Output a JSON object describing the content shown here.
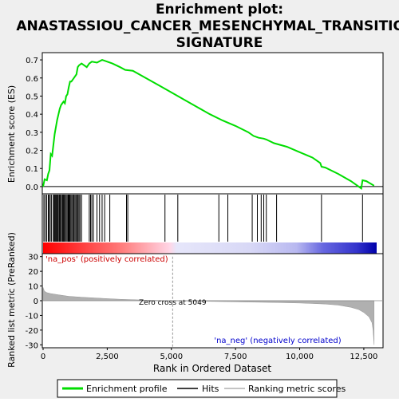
{
  "chart_data": [
    {
      "type": "line",
      "title": "Enrichment plot: ANASTASSIOU_CANCER_MESENCHYMAL_TRANSITION_SIGNATURE",
      "title_lines": [
        "Enrichment plot:",
        "ANASTASSIOU_CANCER_MESENCHYMAL_TRANSITION_",
        "SIGNATURE"
      ],
      "ylabel": "Enrichment score (ES)",
      "xlim": [
        0,
        13000
      ],
      "ylim": [
        -0.04,
        0.74
      ],
      "yticks": [
        0.0,
        0.1,
        0.2,
        0.3,
        0.4,
        0.5,
        0.6,
        0.7
      ],
      "ytick_labels": [
        "0.0",
        "0.1",
        "0.2",
        "0.3",
        "0.4",
        "0.5",
        "0.6",
        "0.7"
      ],
      "series": [
        {
          "name": "Enrichment profile",
          "color": "#00dd00",
          "points": [
            [
              0,
              0.0
            ],
            [
              60,
              0.04
            ],
            [
              150,
              0.035
            ],
            [
              200,
              0.07
            ],
            [
              250,
              0.09
            ],
            [
              300,
              0.18
            ],
            [
              350,
              0.17
            ],
            [
              400,
              0.23
            ],
            [
              450,
              0.29
            ],
            [
              500,
              0.33
            ],
            [
              550,
              0.37
            ],
            [
              600,
              0.4
            ],
            [
              650,
              0.43
            ],
            [
              700,
              0.45
            ],
            [
              750,
              0.46
            ],
            [
              800,
              0.47
            ],
            [
              850,
              0.46
            ],
            [
              900,
              0.5
            ],
            [
              950,
              0.51
            ],
            [
              1000,
              0.55
            ],
            [
              1050,
              0.58
            ],
            [
              1100,
              0.58
            ],
            [
              1200,
              0.6
            ],
            [
              1300,
              0.62
            ],
            [
              1350,
              0.66
            ],
            [
              1400,
              0.67
            ],
            [
              1500,
              0.68
            ],
            [
              1700,
              0.66
            ],
            [
              1800,
              0.68
            ],
            [
              1900,
              0.69
            ],
            [
              2100,
              0.685
            ],
            [
              2300,
              0.7
            ],
            [
              2500,
              0.69
            ],
            [
              2700,
              0.68
            ],
            [
              3000,
              0.66
            ],
            [
              3200,
              0.645
            ],
            [
              3500,
              0.64
            ],
            [
              4000,
              0.6
            ],
            [
              4500,
              0.56
            ],
            [
              5000,
              0.52
            ],
            [
              5500,
              0.48
            ],
            [
              6000,
              0.44
            ],
            [
              6500,
              0.4
            ],
            [
              7000,
              0.365
            ],
            [
              7500,
              0.335
            ],
            [
              8000,
              0.3
            ],
            [
              8200,
              0.28
            ],
            [
              8400,
              0.27
            ],
            [
              8600,
              0.265
            ],
            [
              8700,
              0.26
            ],
            [
              9000,
              0.24
            ],
            [
              9500,
              0.22
            ],
            [
              10000,
              0.19
            ],
            [
              10500,
              0.16
            ],
            [
              10800,
              0.13
            ],
            [
              10850,
              0.11
            ],
            [
              11000,
              0.105
            ],
            [
              11500,
              0.07
            ],
            [
              12000,
              0.03
            ],
            [
              12400,
              -0.01
            ],
            [
              12450,
              0.035
            ],
            [
              12600,
              0.03
            ],
            [
              12900,
              0.005
            ]
          ]
        }
      ],
      "zero_line": true
    },
    {
      "type": "scatter",
      "series": [
        {
          "name": "Hits",
          "color": "#000000",
          "x": [
            30,
            80,
            140,
            200,
            230,
            280,
            330,
            400,
            430,
            460,
            490,
            520,
            550,
            580,
            620,
            650,
            680,
            720,
            760,
            790,
            820,
            860,
            900,
            940,
            980,
            1010,
            1040,
            1080,
            1120,
            1160,
            1200,
            1240,
            1280,
            1320,
            1360,
            1400,
            1440,
            1500,
            1800,
            1850,
            1900,
            1960,
            2100,
            2200,
            2300,
            2400,
            2600,
            3250,
            3300,
            4750,
            5250,
            6850,
            7200,
            8150,
            8350,
            8500,
            8600,
            8700,
            9100,
            10850,
            12450
          ]
        }
      ]
    },
    {
      "type": "area",
      "ylabel": "Ranked list metric (PreRanked)",
      "xlabel": "Rank in Ordered Dataset",
      "xlim": [
        0,
        13000
      ],
      "ylim": [
        -32,
        32
      ],
      "xticks": [
        0,
        2500,
        5000,
        7500,
        10000,
        12500
      ],
      "xtick_labels": [
        "0",
        "2,500",
        "5,000",
        "7,500",
        "10,000",
        "12,500"
      ],
      "yticks": [
        30,
        20,
        10,
        0,
        -10,
        -20,
        -30
      ],
      "ytick_labels": [
        "30",
        "20",
        "10",
        "0",
        "-10",
        "-20",
        "-30"
      ],
      "series": [
        {
          "name": "Ranking metric scores",
          "color": "#b0b0b0",
          "points": [
            [
              0,
              9.0
            ],
            [
              50,
              6.5
            ],
            [
              150,
              5.5
            ],
            [
              300,
              4.8
            ],
            [
              600,
              4.0
            ],
            [
              1000,
              3.0
            ],
            [
              1500,
              2.4
            ],
            [
              2000,
              1.9
            ],
            [
              2500,
              1.4
            ],
            [
              3000,
              1.0
            ],
            [
              3500,
              0.7
            ],
            [
              4000,
              0.4
            ],
            [
              4500,
              0.2
            ],
            [
              5049,
              0.0
            ],
            [
              5500,
              -0.15
            ],
            [
              6000,
              -0.3
            ],
            [
              7000,
              -0.6
            ],
            [
              8000,
              -0.9
            ],
            [
              9000,
              -1.2
            ],
            [
              10000,
              -1.6
            ],
            [
              10500,
              -1.9
            ],
            [
              11000,
              -2.3
            ],
            [
              11500,
              -3.0
            ],
            [
              12000,
              -4.5
            ],
            [
              12300,
              -6.0
            ],
            [
              12500,
              -8.0
            ],
            [
              12700,
              -11.0
            ],
            [
              12820,
              -15.0
            ],
            [
              12860,
              -20.0
            ],
            [
              12900,
              -30.0
            ]
          ]
        }
      ],
      "annotations": [
        "'na_pos' (positively correlated)",
        "Zero cross at 5049",
        "'na_neg' (negatively correlated)"
      ],
      "zero_cross": 5049
    }
  ],
  "legend": {
    "items": [
      {
        "label": "Enrichment profile",
        "color": "#00dd00"
      },
      {
        "label": "Hits",
        "color": "#000000"
      },
      {
        "label": "Ranking metric scores",
        "color": "#b0b0b0"
      }
    ]
  }
}
